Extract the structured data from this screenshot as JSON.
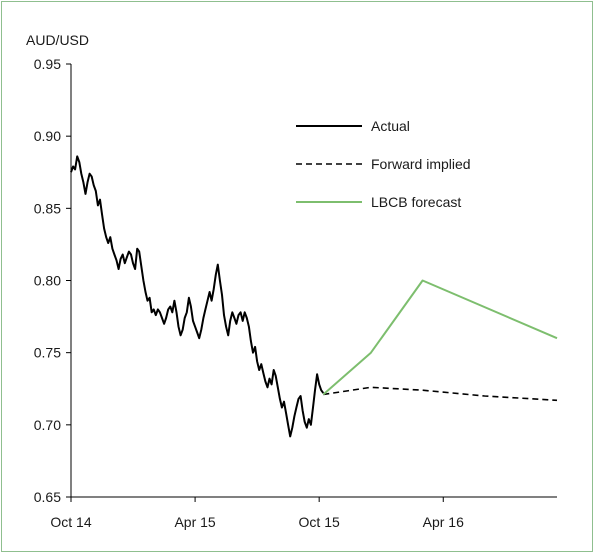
{
  "chart_data": {
    "type": "line",
    "ylabel": "AUD/USD",
    "ylim": [
      0.65,
      0.95
    ],
    "yticks": [
      "0.95",
      "0.90",
      "0.85",
      "0.80",
      "0.75",
      "0.70",
      "0.65"
    ],
    "xticks": [
      {
        "label": "Oct 14",
        "month": 0
      },
      {
        "label": "Apr 15",
        "month": 6
      },
      {
        "label": "Oct 15",
        "month": 12
      },
      {
        "label": "Apr 16",
        "month": 18
      }
    ],
    "xlim_months": [
      0,
      23.5
    ],
    "grid": false,
    "legend_position": "top-right",
    "colors": {
      "actual": "#000000",
      "forward": "#000000",
      "forecast": "#7dbe6e",
      "axis": "#000000",
      "frame": "#8fbf8f"
    },
    "series": [
      {
        "name": "Actual",
        "style": "solid",
        "color": "#000000",
        "points": [
          [
            0.0,
            0.875
          ],
          [
            0.1,
            0.879
          ],
          [
            0.2,
            0.877
          ],
          [
            0.3,
            0.886
          ],
          [
            0.4,
            0.882
          ],
          [
            0.5,
            0.874
          ],
          [
            0.6,
            0.868
          ],
          [
            0.7,
            0.86
          ],
          [
            0.8,
            0.868
          ],
          [
            0.9,
            0.874
          ],
          [
            1.0,
            0.872
          ],
          [
            1.1,
            0.866
          ],
          [
            1.2,
            0.862
          ],
          [
            1.3,
            0.852
          ],
          [
            1.4,
            0.856
          ],
          [
            1.5,
            0.846
          ],
          [
            1.6,
            0.836
          ],
          [
            1.7,
            0.83
          ],
          [
            1.8,
            0.826
          ],
          [
            1.9,
            0.83
          ],
          [
            2.0,
            0.822
          ],
          [
            2.1,
            0.818
          ],
          [
            2.2,
            0.814
          ],
          [
            2.3,
            0.808
          ],
          [
            2.4,
            0.815
          ],
          [
            2.5,
            0.818
          ],
          [
            2.6,
            0.812
          ],
          [
            2.7,
            0.816
          ],
          [
            2.8,
            0.82
          ],
          [
            2.9,
            0.818
          ],
          [
            3.0,
            0.812
          ],
          [
            3.1,
            0.808
          ],
          [
            3.2,
            0.822
          ],
          [
            3.3,
            0.82
          ],
          [
            3.4,
            0.81
          ],
          [
            3.5,
            0.8
          ],
          [
            3.6,
            0.792
          ],
          [
            3.7,
            0.786
          ],
          [
            3.8,
            0.788
          ],
          [
            3.9,
            0.778
          ],
          [
            4.0,
            0.78
          ],
          [
            4.1,
            0.776
          ],
          [
            4.2,
            0.78
          ],
          [
            4.3,
            0.778
          ],
          [
            4.4,
            0.774
          ],
          [
            4.5,
            0.77
          ],
          [
            4.6,
            0.774
          ],
          [
            4.7,
            0.78
          ],
          [
            4.8,
            0.782
          ],
          [
            4.9,
            0.778
          ],
          [
            5.0,
            0.786
          ],
          [
            5.1,
            0.778
          ],
          [
            5.2,
            0.768
          ],
          [
            5.3,
            0.762
          ],
          [
            5.4,
            0.766
          ],
          [
            5.5,
            0.774
          ],
          [
            5.6,
            0.778
          ],
          [
            5.7,
            0.788
          ],
          [
            5.8,
            0.782
          ],
          [
            5.9,
            0.772
          ],
          [
            6.0,
            0.768
          ],
          [
            6.1,
            0.764
          ],
          [
            6.2,
            0.76
          ],
          [
            6.3,
            0.766
          ],
          [
            6.4,
            0.774
          ],
          [
            6.5,
            0.78
          ],
          [
            6.6,
            0.786
          ],
          [
            6.7,
            0.792
          ],
          [
            6.8,
            0.786
          ],
          [
            6.9,
            0.794
          ],
          [
            7.0,
            0.804
          ],
          [
            7.1,
            0.811
          ],
          [
            7.2,
            0.8
          ],
          [
            7.3,
            0.79
          ],
          [
            7.4,
            0.776
          ],
          [
            7.5,
            0.768
          ],
          [
            7.6,
            0.762
          ],
          [
            7.7,
            0.772
          ],
          [
            7.8,
            0.778
          ],
          [
            7.9,
            0.774
          ],
          [
            8.0,
            0.77
          ],
          [
            8.1,
            0.776
          ],
          [
            8.2,
            0.778
          ],
          [
            8.3,
            0.772
          ],
          [
            8.4,
            0.778
          ],
          [
            8.5,
            0.774
          ],
          [
            8.6,
            0.768
          ],
          [
            8.7,
            0.758
          ],
          [
            8.8,
            0.75
          ],
          [
            8.9,
            0.754
          ],
          [
            9.0,
            0.744
          ],
          [
            9.1,
            0.738
          ],
          [
            9.2,
            0.742
          ],
          [
            9.3,
            0.736
          ],
          [
            9.4,
            0.73
          ],
          [
            9.5,
            0.726
          ],
          [
            9.6,
            0.732
          ],
          [
            9.7,
            0.728
          ],
          [
            9.8,
            0.738
          ],
          [
            9.9,
            0.734
          ],
          [
            10.0,
            0.726
          ],
          [
            10.1,
            0.718
          ],
          [
            10.2,
            0.712
          ],
          [
            10.3,
            0.716
          ],
          [
            10.4,
            0.708
          ],
          [
            10.5,
            0.7
          ],
          [
            10.6,
            0.692
          ],
          [
            10.7,
            0.698
          ],
          [
            10.8,
            0.706
          ],
          [
            10.9,
            0.712
          ],
          [
            11.0,
            0.718
          ],
          [
            11.1,
            0.72
          ],
          [
            11.2,
            0.71
          ],
          [
            11.3,
            0.702
          ],
          [
            11.4,
            0.698
          ],
          [
            11.5,
            0.704
          ],
          [
            11.6,
            0.7
          ],
          [
            11.7,
            0.712
          ],
          [
            11.8,
            0.724
          ],
          [
            11.9,
            0.735
          ],
          [
            12.0,
            0.728
          ],
          [
            12.1,
            0.724
          ],
          [
            12.2,
            0.722
          ]
        ]
      },
      {
        "name": "Forward implied",
        "style": "dashed",
        "color": "#000000",
        "points": [
          [
            12.2,
            0.721
          ],
          [
            14.5,
            0.726
          ],
          [
            17.0,
            0.724
          ],
          [
            20.0,
            0.72
          ],
          [
            23.5,
            0.717
          ]
        ]
      },
      {
        "name": "LBCB forecast",
        "style": "solid",
        "color": "#7dbe6e",
        "points": [
          [
            12.2,
            0.721
          ],
          [
            14.5,
            0.75
          ],
          [
            17.0,
            0.8
          ],
          [
            23.5,
            0.76
          ]
        ]
      }
    ]
  }
}
